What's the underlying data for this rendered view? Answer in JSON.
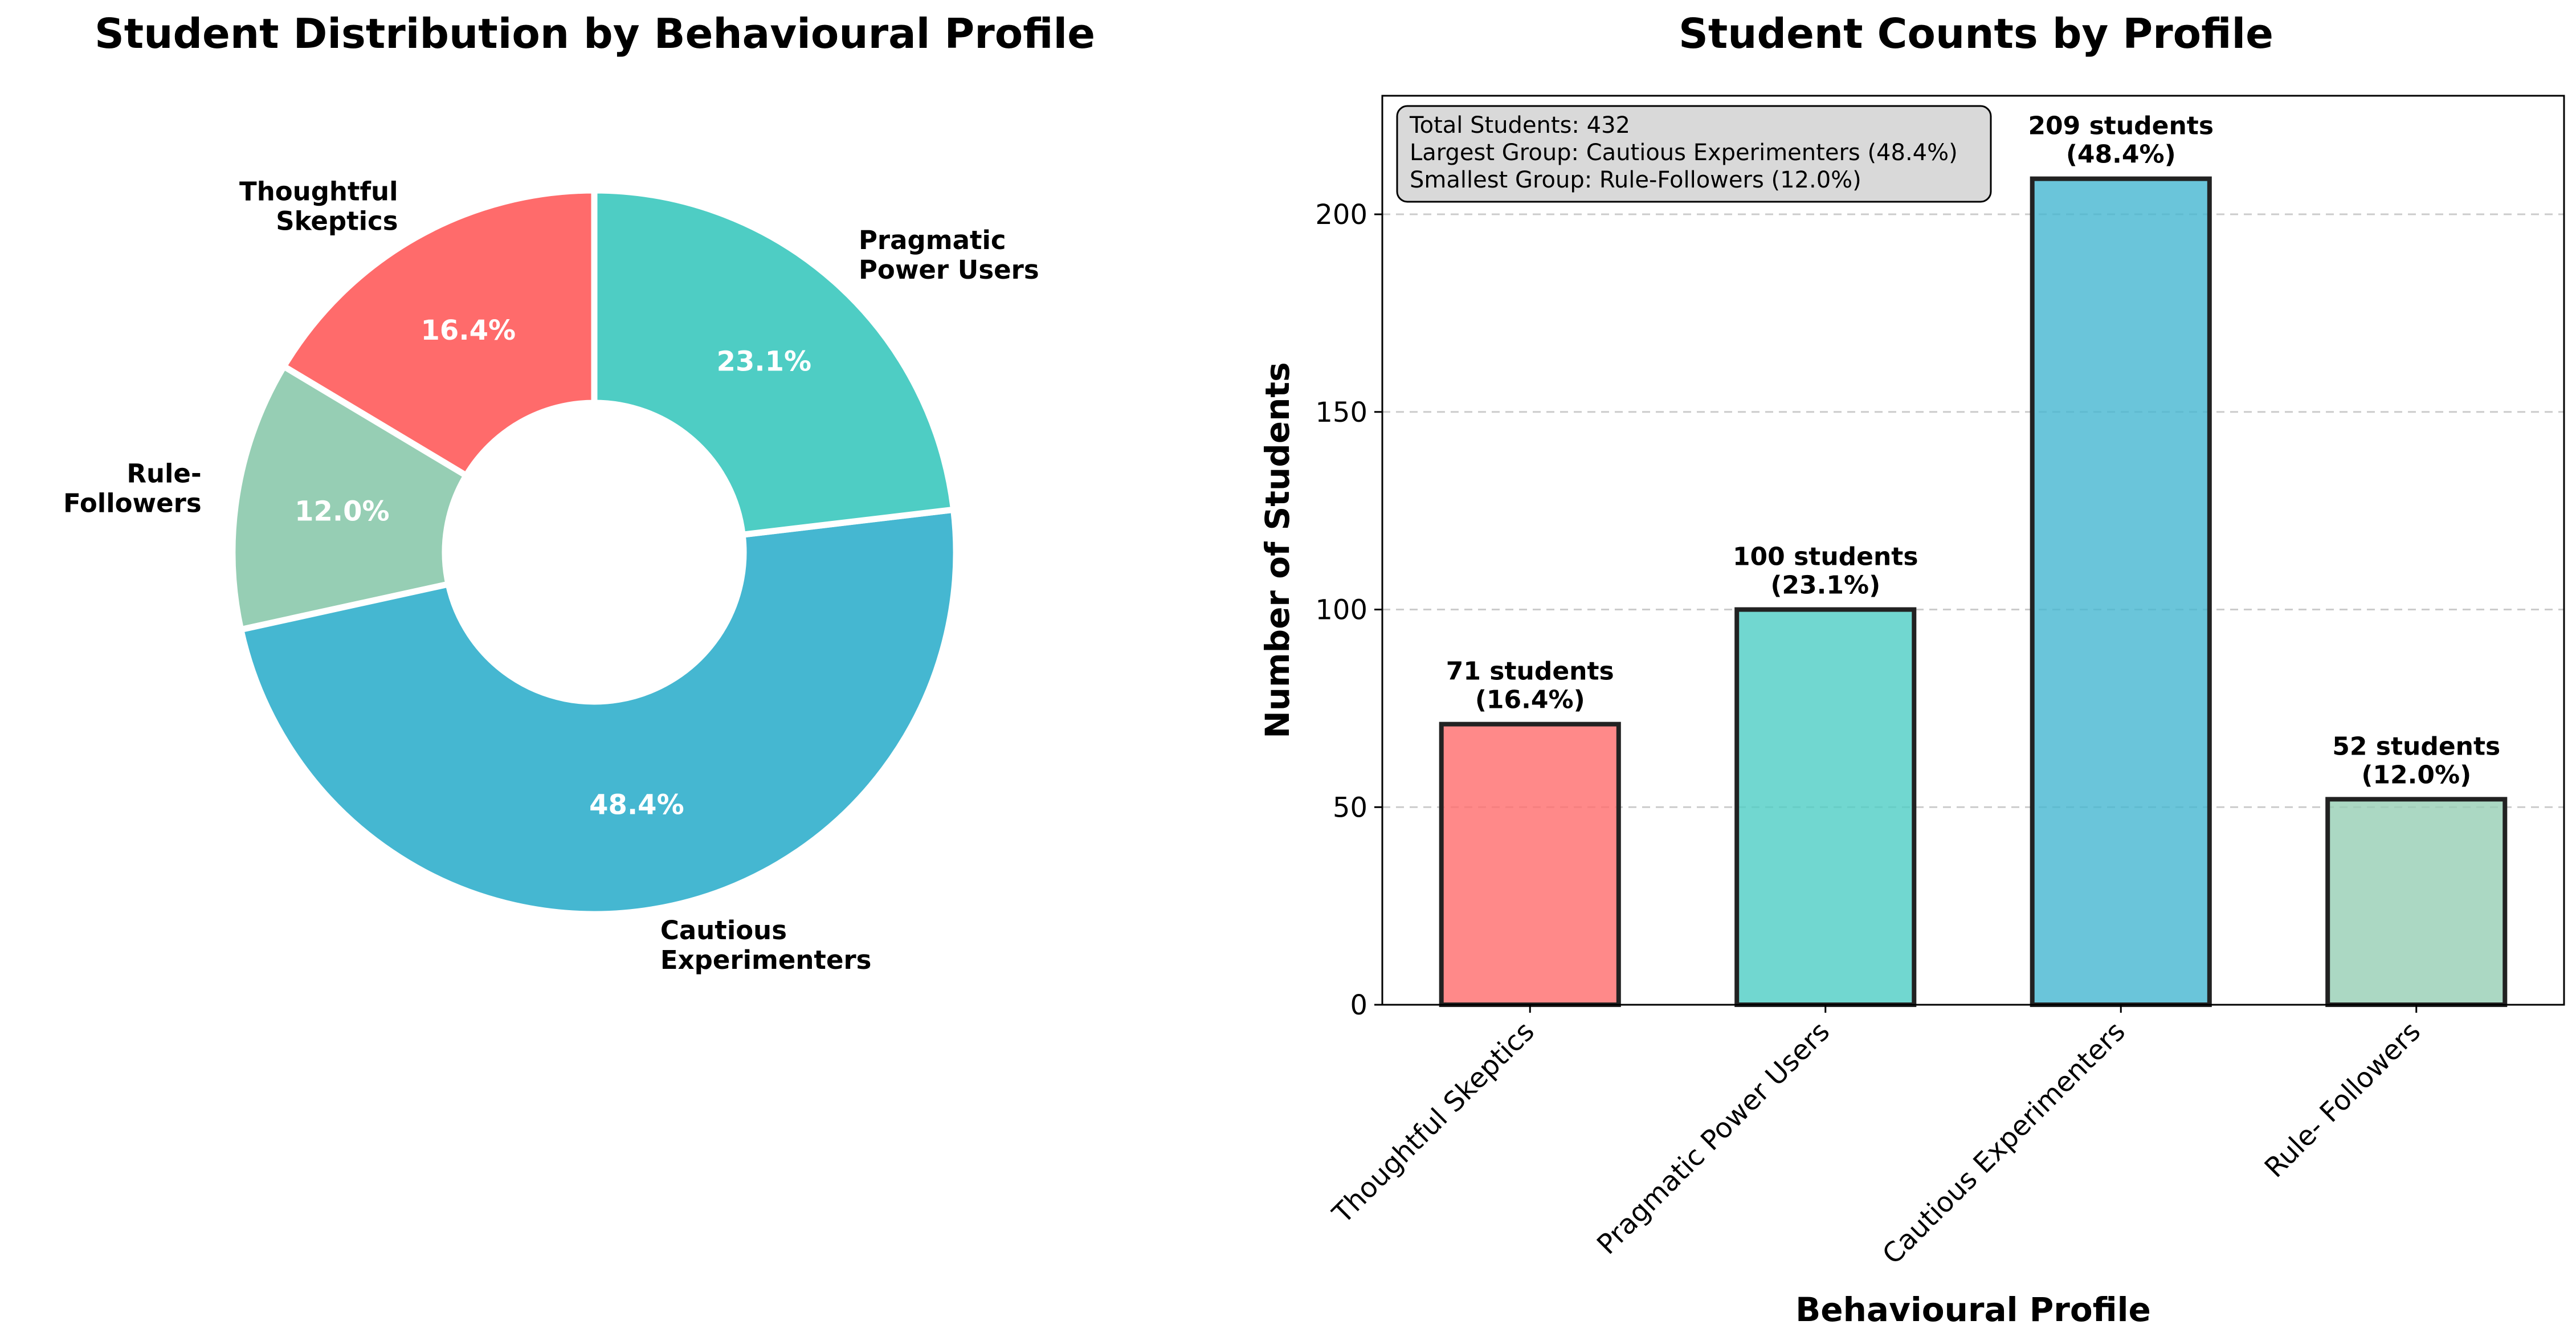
{
  "chart_data": [
    {
      "type": "pie",
      "title": "Student Distribution by Behavioural Profile",
      "slices": [
        {
          "label": [
            "Thoughtful",
            "Skeptics"
          ],
          "value": 16.4,
          "pct_label": "16.4%",
          "color": "#FF6B6B"
        },
        {
          "label": [
            "Rule-",
            "Followers"
          ],
          "value": 12.0,
          "pct_label": "12.0%",
          "color": "#96CEB4"
        },
        {
          "label": [
            "Cautious",
            "Experimenters"
          ],
          "value": 48.4,
          "pct_label": "48.4%",
          "color": "#45B7D1"
        },
        {
          "label": [
            "Pragmatic",
            "Power Users"
          ],
          "value": 23.1,
          "pct_label": "23.1%",
          "color": "#4ECDC4"
        }
      ],
      "donut": true,
      "start_angle_deg": 90,
      "direction": "counterclockwise"
    },
    {
      "type": "bar",
      "title": "Student Counts by Profile",
      "categories": [
        "Thoughtful Skeptics",
        "Pragmatic Power Users",
        "Cautious Experimenters",
        "Rule- Followers"
      ],
      "values": [
        71,
        100,
        209,
        52
      ],
      "bar_labels": [
        [
          "71 students",
          "(16.4%)"
        ],
        [
          "100 students",
          "(23.1%)"
        ],
        [
          "209 students",
          "(48.4%)"
        ],
        [
          "52 students",
          "(12.0%)"
        ]
      ],
      "colors": [
        "#FF6B6B",
        "#4ECDC4",
        "#45B7D1",
        "#96CEB4"
      ],
      "xlabel": "Behavioural Profile",
      "ylabel": "Number of Students",
      "ylim": [
        0,
        230
      ],
      "yticks": [
        0,
        50,
        100,
        150,
        200
      ],
      "grid": true,
      "info_box": [
        "Total Students: 432",
        "Largest Group: Cautious Experimenters (48.4%)",
        "Smallest Group: Rule-Followers (12.0%)"
      ],
      "info_box_position": "top-left"
    }
  ]
}
